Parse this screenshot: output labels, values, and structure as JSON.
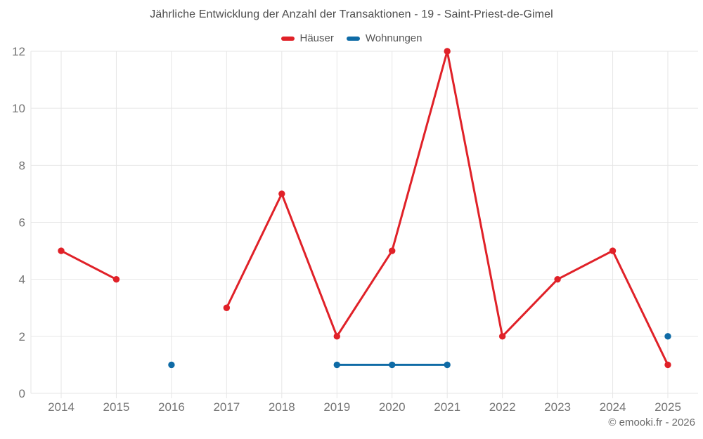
{
  "chart_data": {
    "type": "line",
    "title": "Jährliche Entwicklung der Anzahl der Transaktionen - 19 - Saint-Priest-de-Gimel",
    "x": [
      "2014",
      "2015",
      "2016",
      "2017",
      "2018",
      "2019",
      "2020",
      "2021",
      "2022",
      "2023",
      "2024",
      "2025"
    ],
    "series": [
      {
        "name": "Häuser",
        "color": "#e02128",
        "values": [
          5,
          4,
          null,
          3,
          7,
          2,
          5,
          12,
          2,
          4,
          5,
          1
        ]
      },
      {
        "name": "Wohnungen",
        "color": "#0f6ba6",
        "values": [
          null,
          null,
          1,
          null,
          null,
          1,
          1,
          1,
          null,
          null,
          null,
          2
        ]
      }
    ],
    "xlabel": "",
    "ylabel": "",
    "ylim": [
      0,
      12
    ],
    "yticks": [
      0,
      2,
      4,
      6,
      8,
      10,
      12
    ],
    "grid": true,
    "legend_position": "top",
    "styles": {
      "grid_color": "#e6e6e6",
      "tick_color": "#757575",
      "title_color": "#4d4d4d",
      "legend_color": "#555555",
      "footer_color": "#6b6b6b",
      "background": "#ffffff"
    }
  },
  "footer": {
    "copyright": "© emooki.fr - 2026"
  }
}
